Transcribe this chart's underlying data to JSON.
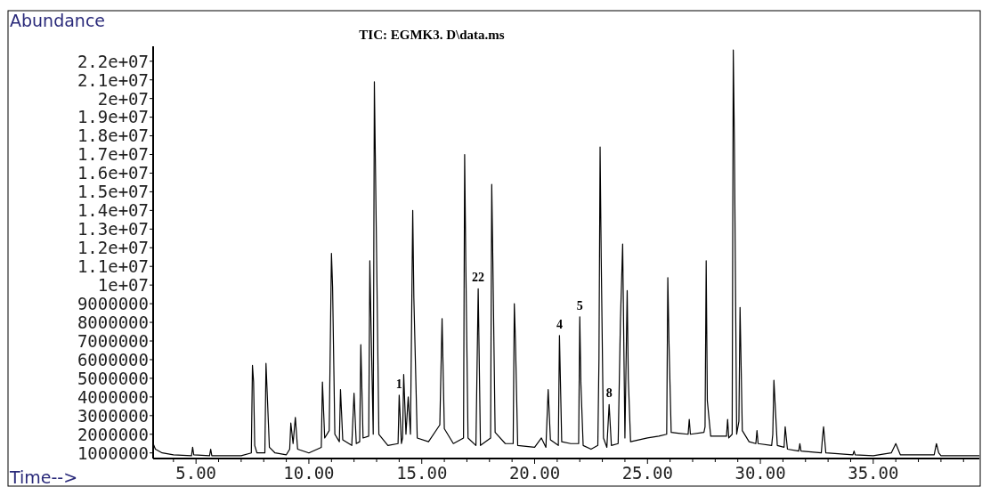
{
  "chart_data": {
    "type": "line",
    "title": "TIC: EGMK3. D\\data.ms",
    "xlabel": "Time-->",
    "ylabel": "Abundance",
    "xlim": [
      3.1,
      39.7
    ],
    "ylim": [
      700000,
      22800000
    ],
    "xticks": [
      {
        "value": 4,
        "label": null
      },
      {
        "value": 5,
        "label": "5.00"
      },
      {
        "value": 6,
        "label": null
      },
      {
        "value": 7,
        "label": null
      },
      {
        "value": 8,
        "label": null
      },
      {
        "value": 9,
        "label": null
      },
      {
        "value": 10,
        "label": "10.00"
      },
      {
        "value": 11,
        "label": null
      },
      {
        "value": 12,
        "label": null
      },
      {
        "value": 13,
        "label": null
      },
      {
        "value": 14,
        "label": null
      },
      {
        "value": 15,
        "label": "15.00"
      },
      {
        "value": 16,
        "label": null
      },
      {
        "value": 17,
        "label": null
      },
      {
        "value": 18,
        "label": null
      },
      {
        "value": 19,
        "label": null
      },
      {
        "value": 20,
        "label": "20.00"
      },
      {
        "value": 21,
        "label": null
      },
      {
        "value": 22,
        "label": null
      },
      {
        "value": 23,
        "label": null
      },
      {
        "value": 24,
        "label": null
      },
      {
        "value": 25,
        "label": "25.00"
      },
      {
        "value": 26,
        "label": null
      },
      {
        "value": 27,
        "label": null
      },
      {
        "value": 28,
        "label": null
      },
      {
        "value": 29,
        "label": null
      },
      {
        "value": 30,
        "label": "30.00"
      },
      {
        "value": 31,
        "label": null
      },
      {
        "value": 32,
        "label": null
      },
      {
        "value": 33,
        "label": null
      },
      {
        "value": 34,
        "label": null
      },
      {
        "value": 35,
        "label": "35.00"
      },
      {
        "value": 36,
        "label": null
      },
      {
        "value": 37,
        "label": null
      },
      {
        "value": 38,
        "label": null
      },
      {
        "value": 39,
        "label": null
      }
    ],
    "yticks": [
      1000000,
      2000000,
      3000000,
      4000000,
      5000000,
      6000000,
      7000000,
      8000000,
      9000000,
      {
        "value": 10000000,
        "label": "1e+07"
      },
      {
        "value": 11000000,
        "label": "1.1e+07"
      },
      {
        "value": 12000000,
        "label": "1.2e+07"
      },
      {
        "value": 13000000,
        "label": "1.3e+07"
      },
      {
        "value": 14000000,
        "label": "1.4e+07"
      },
      {
        "value": 15000000,
        "label": "1.5e+07"
      },
      {
        "value": 16000000,
        "label": "1.6e+07"
      },
      {
        "value": 17000000,
        "label": "1.7e+07"
      },
      {
        "value": 18000000,
        "label": "1.8e+07"
      },
      {
        "value": 19000000,
        "label": "1.9e+07"
      },
      {
        "value": 20000000,
        "label": "2e+07"
      },
      {
        "value": 21000000,
        "label": "2.1e+07"
      },
      {
        "value": 22000000,
        "label": "2.2e+07"
      }
    ],
    "grid": false,
    "marker": "none",
    "line_style": "solid",
    "annotations": [
      {
        "text": "1",
        "x": 14.0,
        "y": 4100000
      },
      {
        "text": "22",
        "x": 17.5,
        "y": 9800000
      },
      {
        "text": "4",
        "x": 21.1,
        "y": 7300000
      },
      {
        "text": "5",
        "x": 22.0,
        "y": 8300000
      },
      {
        "text": "8",
        "x": 23.3,
        "y": 3600000
      }
    ],
    "series": [
      {
        "color": "#000000",
        "x": [
          3.1,
          3.2,
          3.5,
          4.0,
          4.8,
          4.85,
          4.9,
          5.6,
          5.65,
          5.7,
          7.0,
          7.45,
          7.5,
          7.55,
          7.6,
          7.7,
          8.05,
          8.1,
          8.15,
          8.25,
          8.5,
          9.0,
          9.15,
          9.2,
          9.3,
          9.4,
          9.5,
          10.0,
          10.55,
          10.6,
          10.7,
          10.9,
          11.0,
          11.05,
          11.15,
          11.35,
          11.4,
          11.5,
          11.9,
          12.0,
          12.1,
          12.25,
          12.3,
          12.4,
          12.65,
          12.7,
          12.75,
          12.85,
          12.9,
          13.0,
          13.1,
          13.5,
          13.95,
          14.0,
          14.1,
          14.15,
          14.2,
          14.3,
          14.4,
          14.5,
          14.6,
          14.65,
          14.8,
          15.3,
          15.8,
          15.9,
          16.0,
          16.4,
          16.85,
          16.9,
          16.95,
          17.05,
          17.4,
          17.5,
          17.6,
          18.05,
          18.1,
          18.15,
          18.25,
          18.7,
          19.05,
          19.1,
          19.15,
          19.25,
          20.0,
          20.3,
          20.5,
          20.6,
          20.7,
          21.05,
          21.1,
          21.2,
          21.6,
          21.95,
          22.0,
          22.05,
          22.15,
          22.5,
          22.8,
          22.85,
          22.9,
          22.95,
          23.05,
          23.2,
          23.3,
          23.4,
          23.7,
          23.8,
          23.9,
          24.0,
          24.1,
          24.15,
          24.25,
          25.0,
          25.5,
          25.85,
          25.9,
          25.95,
          26.05,
          26.8,
          26.85,
          26.9,
          27.5,
          27.55,
          27.6,
          27.65,
          27.8,
          28.5,
          28.55,
          28.6,
          28.75,
          28.8,
          28.85,
          28.95,
          29.05,
          29.1,
          29.2,
          29.5,
          29.8,
          29.85,
          29.9,
          30.5,
          30.55,
          30.6,
          30.65,
          30.75,
          31.05,
          31.1,
          31.2,
          31.7,
          31.75,
          31.8,
          32.7,
          32.75,
          32.8,
          32.9,
          34.1,
          34.15,
          34.2,
          35.0,
          35.8,
          36.0,
          36.2,
          37.7,
          37.8,
          37.9,
          38.0,
          39.7
        ],
        "values": [
          1500000,
          1200000,
          1000000,
          900000,
          850000,
          1300000,
          900000,
          850000,
          1200000,
          850000,
          850000,
          1000000,
          5700000,
          4800000,
          1400000,
          1000000,
          1000000,
          5800000,
          4300000,
          1300000,
          1000000,
          900000,
          1200000,
          2600000,
          1500000,
          2900000,
          1200000,
          1000000,
          1300000,
          4800000,
          1800000,
          2200000,
          11700000,
          9900000,
          2000000,
          1600000,
          4400000,
          1700000,
          1400000,
          4200000,
          1500000,
          1600000,
          6800000,
          1800000,
          1900000,
          11300000,
          8000000,
          2000000,
          20900000,
          11600000,
          2000000,
          1400000,
          1500000,
          4100000,
          1500000,
          1800000,
          5200000,
          2000000,
          4000000,
          2000000,
          14000000,
          9300000,
          1800000,
          1600000,
          2500000,
          8200000,
          2300000,
          1500000,
          1800000,
          17000000,
          11300000,
          1800000,
          1400000,
          9800000,
          1400000,
          1800000,
          15400000,
          11200000,
          2100000,
          1500000,
          1500000,
          9000000,
          7000000,
          1400000,
          1300000,
          1800000,
          1300000,
          4400000,
          1700000,
          1400000,
          7300000,
          1600000,
          1500000,
          1500000,
          8300000,
          4700000,
          1400000,
          1200000,
          1400000,
          6000000,
          17400000,
          11400000,
          1800000,
          1300000,
          3600000,
          1400000,
          1500000,
          8000000,
          12200000,
          1800000,
          9700000,
          5000000,
          1600000,
          1800000,
          1900000,
          2000000,
          10400000,
          7000000,
          2100000,
          2000000,
          2800000,
          2000000,
          2100000,
          2400000,
          11300000,
          3800000,
          1900000,
          1900000,
          2800000,
          1800000,
          2000000,
          22600000,
          17600000,
          2000000,
          2700000,
          8800000,
          2200000,
          1600000,
          1500000,
          2200000,
          1500000,
          1400000,
          2000000,
          4900000,
          3700000,
          1400000,
          1300000,
          2400000,
          1200000,
          1100000,
          1500000,
          1100000,
          1000000,
          1800000,
          2400000,
          1000000,
          900000,
          1100000,
          900000,
          850000,
          1000000,
          1500000,
          900000,
          900000,
          1500000,
          1000000,
          850000,
          850000
        ]
      }
    ]
  }
}
